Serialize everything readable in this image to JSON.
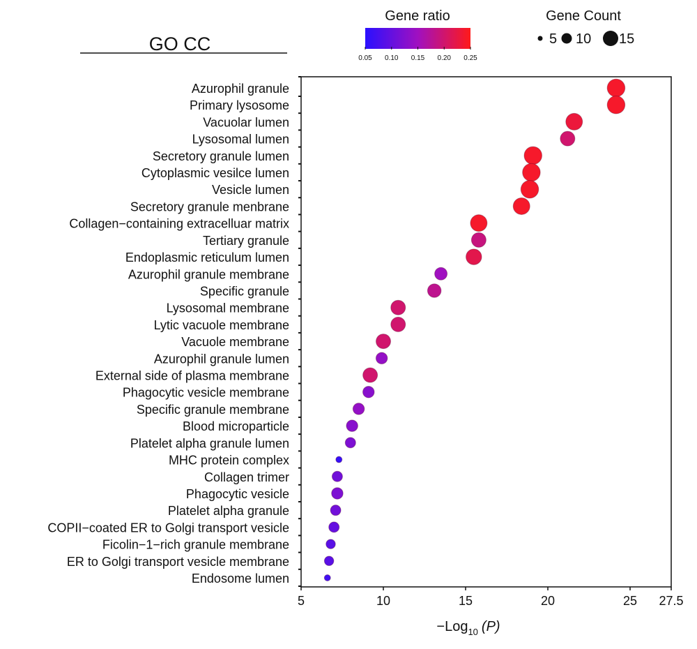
{
  "chart_data": {
    "type": "scatter",
    "title": "GO CC",
    "xlabel": "-Log10 (P)",
    "xlabel_prefix": "−Log",
    "xlabel_sub": "10",
    "xlabel_suffix": "(P)",
    "xlim": [
      5,
      27.5
    ],
    "xticks": [
      5,
      10,
      15,
      20,
      25,
      27.5
    ],
    "xtick_labels": [
      "5",
      "10",
      "15",
      "20",
      "25",
      "27.5"
    ],
    "color_legend": {
      "title": "Gene ratio",
      "min": 0.05,
      "max": 0.25,
      "ticks": [
        "0.05",
        "0.10",
        "0.15",
        "0.20",
        "0.25"
      ],
      "low_color": "#2a10ff",
      "mid_color": "#a010c0",
      "high_color": "#ff1a1a",
      "placement": "top-center"
    },
    "size_legend": {
      "title": "Gene Count",
      "values": [
        5,
        10,
        15
      ],
      "labels": [
        "5",
        "10",
        "15"
      ],
      "placement": "top-right"
    },
    "categories": [
      "Azurophil granule",
      "Primary lysosome",
      "Vacuolar lumen",
      "Lysosomal lumen",
      "Secretory granule lumen",
      "Cytoplasmic vesilce lumen",
      "Vesicle lumen",
      "Secretory granule menbrane",
      "Collagen−containing extracelluar matrix",
      "Tertiary granule",
      "Endoplasmic reticulum lumen",
      "Azurophil granule membrane",
      "Specific granule",
      "Lysosomal membrane",
      "Lytic vacuole membrane",
      "Vacuole membrane",
      "Azurophil granule lumen",
      "External side of plasma membrane",
      "Phagocytic vesicle membrane",
      "Specific granule membrane",
      "Blood microparticle",
      "Platelet alpha granule lumen",
      "MHC protein complex",
      "Collagen trimer",
      "Phagocytic vesicle",
      "Platelet alpha granule",
      "COPII−coated ER to Golgi transport vesicle",
      "Ficolin−1−rich granule membrane",
      "ER to Golgi transport vesicle membrane",
      "Endosome lumen"
    ],
    "neg_log10_p": [
      24.15,
      24.15,
      21.6,
      21.2,
      19.1,
      19.0,
      18.9,
      18.4,
      15.8,
      15.8,
      15.5,
      13.5,
      13.1,
      10.9,
      10.9,
      10.0,
      9.9,
      9.2,
      9.1,
      8.5,
      8.1,
      8.0,
      7.3,
      7.2,
      7.2,
      7.1,
      7.0,
      6.8,
      6.7,
      6.6
    ],
    "gene_count": [
      17,
      17,
      16,
      14,
      17,
      17,
      17,
      16,
      16,
      14,
      15,
      12,
      13,
      14,
      14,
      14,
      11,
      14,
      11,
      11,
      11,
      10,
      6,
      10,
      11,
      10,
      10,
      9,
      9,
      6
    ],
    "gene_ratio": [
      0.24,
      0.24,
      0.23,
      0.2,
      0.24,
      0.24,
      0.24,
      0.24,
      0.24,
      0.19,
      0.22,
      0.15,
      0.18,
      0.2,
      0.2,
      0.2,
      0.14,
      0.2,
      0.13,
      0.14,
      0.13,
      0.12,
      0.06,
      0.11,
      0.12,
      0.11,
      0.1,
      0.09,
      0.09,
      0.07
    ],
    "grid": false
  }
}
